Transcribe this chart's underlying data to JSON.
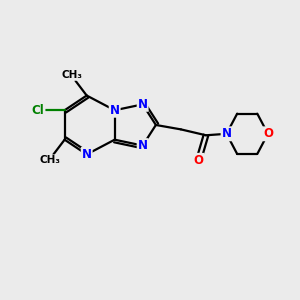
{
  "bg_color": "#ebebeb",
  "bond_color": "#000000",
  "bond_width": 1.6,
  "atom_colors": {
    "N": "#0000FF",
    "O": "#FF0000",
    "Cl": "#008000",
    "C": "#000000"
  },
  "font_size_atom": 8.5,
  "font_size_methyl": 7.5
}
